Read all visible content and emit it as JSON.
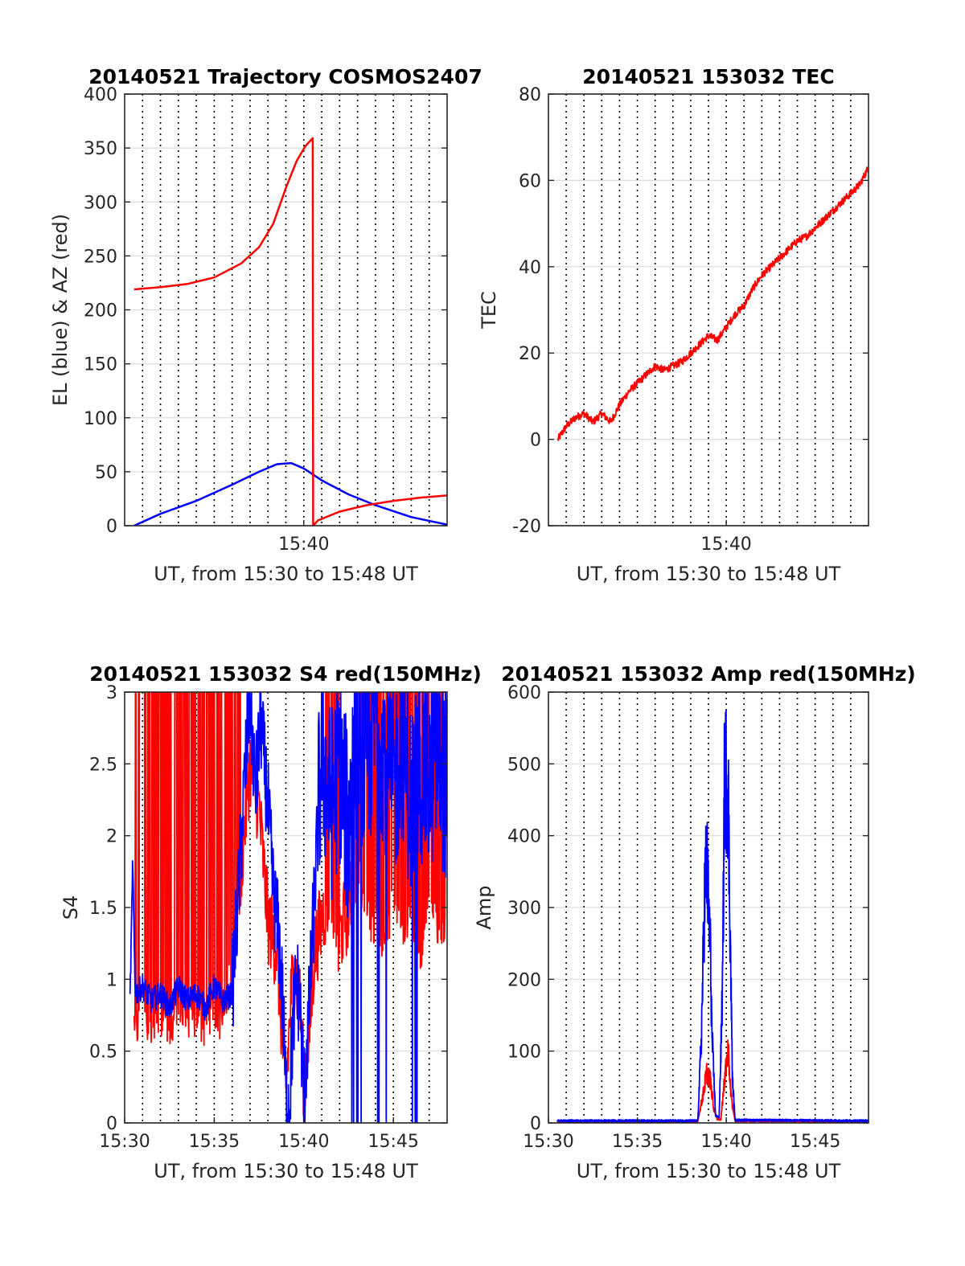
{
  "figure": {
    "panels": [
      {
        "title": "20140521 Trajectory COSMOS2407",
        "xlabel": "UT, from 15:30 to 15:48 UT",
        "ylabel": "EL (blue) & AZ (red)",
        "yticks": [
          "0",
          "50",
          "100",
          "150",
          "200",
          "250",
          "300",
          "350",
          "400"
        ],
        "xticks": [
          "15:40"
        ]
      },
      {
        "title": "20140521 153032 TEC",
        "xlabel": "UT, from 15:30 to 15:48 UT",
        "ylabel": "TEC",
        "yticks": [
          "-20",
          "0",
          "20",
          "40",
          "60",
          "80"
        ],
        "xticks": [
          "15:40"
        ]
      },
      {
        "title": "20140521 153032 S4 red(150MHz)",
        "xlabel": "UT, from 15:30 to 15:48 UT",
        "ylabel": "S4",
        "yticks": [
          "0",
          "0.5",
          "1",
          "1.5",
          "2",
          "2.5",
          "3"
        ],
        "xticks": [
          "15:30",
          "15:35",
          "15:40",
          "15:45"
        ]
      },
      {
        "title": "20140521 153032 Amp red(150MHz)",
        "xlabel": "UT, from 15:30 to 15:48 UT",
        "ylabel": "Amp",
        "yticks": [
          "0",
          "100",
          "200",
          "300",
          "400",
          "500",
          "600"
        ],
        "xticks": [
          "15:30",
          "15:35",
          "15:40",
          "15:45"
        ]
      }
    ]
  },
  "chart_data": [
    {
      "type": "line",
      "title": "20140521 Trajectory COSMOS2407",
      "xlabel": "UT, from 15:30 to 15:48 UT",
      "ylabel": "EL (blue) & AZ (red)",
      "x_unit": "minutes after 15:30 UT",
      "xlim": [
        0,
        18
      ],
      "ylim": [
        0,
        400
      ],
      "grid": true,
      "series": [
        {
          "color": "#0000ff",
          "x": [
            0.53,
            2,
            4,
            6,
            7.5,
            8.5,
            9.3,
            10.0,
            11.0,
            12.5,
            14.0,
            16.0,
            18.0
          ],
          "values": [
            0,
            11,
            23,
            38,
            50,
            57,
            58,
            53,
            42,
            29,
            19,
            8,
            1
          ]
        },
        {
          "color": "#ff0000",
          "x": [
            0.53,
            2,
            3.5,
            5,
            6.5,
            7.5,
            8.3,
            9.0,
            9.6,
            10.1,
            10.5,
            10.52,
            10.8,
            12.0,
            13.5,
            15.0,
            16.5,
            18.0
          ],
          "values": [
            219,
            221,
            224,
            230,
            243,
            258,
            280,
            313,
            338,
            352,
            359,
            0,
            5,
            13,
            19,
            23,
            26,
            28
          ]
        }
      ]
    },
    {
      "type": "line",
      "title": "20140521 153032 TEC",
      "xlabel": "UT, from 15:30 to 15:48 UT",
      "ylabel": "TEC",
      "x_unit": "minutes after 15:30 UT",
      "xlim": [
        0,
        18
      ],
      "ylim": [
        -20,
        80
      ],
      "grid": true,
      "series": [
        {
          "color": "#ff0000",
          "x": [
            0.53,
            1.0,
            1.5,
            2.0,
            2.5,
            3.0,
            3.5,
            4.0,
            4.5,
            5.0,
            5.5,
            6.0,
            6.5,
            7.0,
            7.5,
            8.0,
            8.5,
            9.0,
            9.5,
            10.0,
            10.5,
            11.0,
            11.5,
            12.0,
            12.5,
            13.0,
            13.5,
            14.0,
            14.5,
            15.0,
            15.5,
            16.0,
            16.5,
            17.0,
            17.5,
            18.0
          ],
          "values": [
            0,
            3,
            5,
            6,
            4,
            6,
            4,
            8,
            11,
            13,
            15,
            17,
            16,
            17,
            18,
            20,
            22,
            24,
            23,
            26,
            29,
            31,
            35,
            38,
            40,
            42,
            44,
            46,
            47,
            49,
            51,
            53,
            55,
            57,
            59,
            63
          ]
        }
      ]
    },
    {
      "type": "line",
      "title": "20140521 153032 S4 red(150MHz)",
      "xlabel": "UT, from 15:30 to 15:48 UT",
      "ylabel": "S4",
      "x_unit": "minutes after 15:30 UT",
      "xlim": [
        0,
        18
      ],
      "ylim": [
        0,
        3
      ],
      "grid": true,
      "series": [
        {
          "color": "#ff0000",
          "x": [
            0.53,
            1.0,
            1.5,
            2.0,
            2.5,
            3.0,
            3.5,
            4.0,
            4.5,
            5.0,
            5.5,
            6.0,
            6.5,
            7.0,
            7.5,
            8.0,
            8.5,
            8.8,
            9.0,
            9.3,
            9.5,
            9.8,
            10.0,
            10.3,
            10.6,
            11.0,
            11.5,
            12.0,
            12.5,
            13.0,
            13.5,
            14.0,
            14.5,
            15.0,
            15.5,
            16.0,
            16.5,
            17.0,
            17.5,
            18.0
          ],
          "values": [
            0.8,
            0.9,
            0.85,
            0.9,
            0.8,
            0.95,
            0.85,
            0.9,
            0.8,
            0.9,
            0.85,
            1.3,
            1.8,
            2.5,
            2.2,
            1.4,
            1.2,
            0.6,
            0.2,
            0.9,
            1.1,
            0.8,
            0.3,
            0.6,
            1.2,
            1.4,
            1.7,
            1.3,
            1.5,
            1.9,
            1.6,
            1.5,
            1.4,
            1.7,
            1.5,
            1.6,
            1.3,
            1.8,
            1.4,
            1.6
          ]
        },
        {
          "color": "#0000ff",
          "x": [
            0.3,
            0.45,
            0.6,
            1.0,
            1.5,
            2.0,
            2.5,
            3.0,
            3.5,
            4.0,
            4.5,
            5.0,
            5.5,
            6.0,
            6.3,
            6.7,
            7.0,
            7.3,
            7.6,
            8.0,
            8.3,
            8.6,
            8.8,
            9.0,
            9.2,
            9.4,
            9.6,
            9.8,
            10.0,
            10.3,
            10.6,
            11.0,
            11.5,
            12.0,
            12.5,
            13.0,
            13.5,
            14.0,
            14.5,
            15.0,
            15.5,
            16.0,
            16.5,
            17.0,
            17.5,
            18.0
          ],
          "values": [
            0.85,
            1.8,
            0.9,
            0.95,
            0.85,
            0.9,
            0.8,
            0.95,
            0.85,
            0.9,
            0.8,
            0.95,
            0.85,
            0.9,
            1.5,
            2.4,
            3.0,
            2.3,
            2.8,
            2.2,
            1.6,
            1.3,
            0.9,
            0.2,
            0.15,
            0.7,
            1.0,
            0.8,
            0.15,
            0.8,
            1.6,
            2.6,
            2.2,
            2.5,
            2.0,
            2.8,
            2.4,
            2.9,
            2.6,
            2.3,
            2.7,
            2.2,
            2.5,
            2.4,
            2.6,
            2.3
          ]
        }
      ]
    },
    {
      "type": "line",
      "title": "20140521 153032 Amp red(150MHz)",
      "xlabel": "UT, from 15:30 to 15:48 UT",
      "ylabel": "Amp",
      "x_unit": "minutes after 15:30 UT",
      "xlim": [
        0,
        18
      ],
      "ylim": [
        0,
        600
      ],
      "grid": true,
      "series": [
        {
          "color": "#ff0000",
          "x": [
            0.5,
            8.4,
            8.7,
            8.9,
            9.1,
            9.3,
            9.5,
            9.7,
            9.9,
            10.0,
            10.1,
            10.3,
            10.5,
            18.0
          ],
          "values": [
            2,
            2,
            40,
            70,
            60,
            20,
            5,
            5,
            60,
            80,
            100,
            30,
            3,
            2
          ]
        },
        {
          "color": "#0000ff",
          "x": [
            0.5,
            8.4,
            8.6,
            8.8,
            8.9,
            9.0,
            9.1,
            9.2,
            9.4,
            9.6,
            9.8,
            9.9,
            10.0,
            10.1,
            10.2,
            10.35,
            10.5,
            18.0
          ],
          "values": [
            3,
            3,
            120,
            330,
            370,
            300,
            250,
            120,
            10,
            8,
            200,
            490,
            480,
            470,
            300,
            60,
            4,
            3
          ]
        }
      ]
    }
  ]
}
